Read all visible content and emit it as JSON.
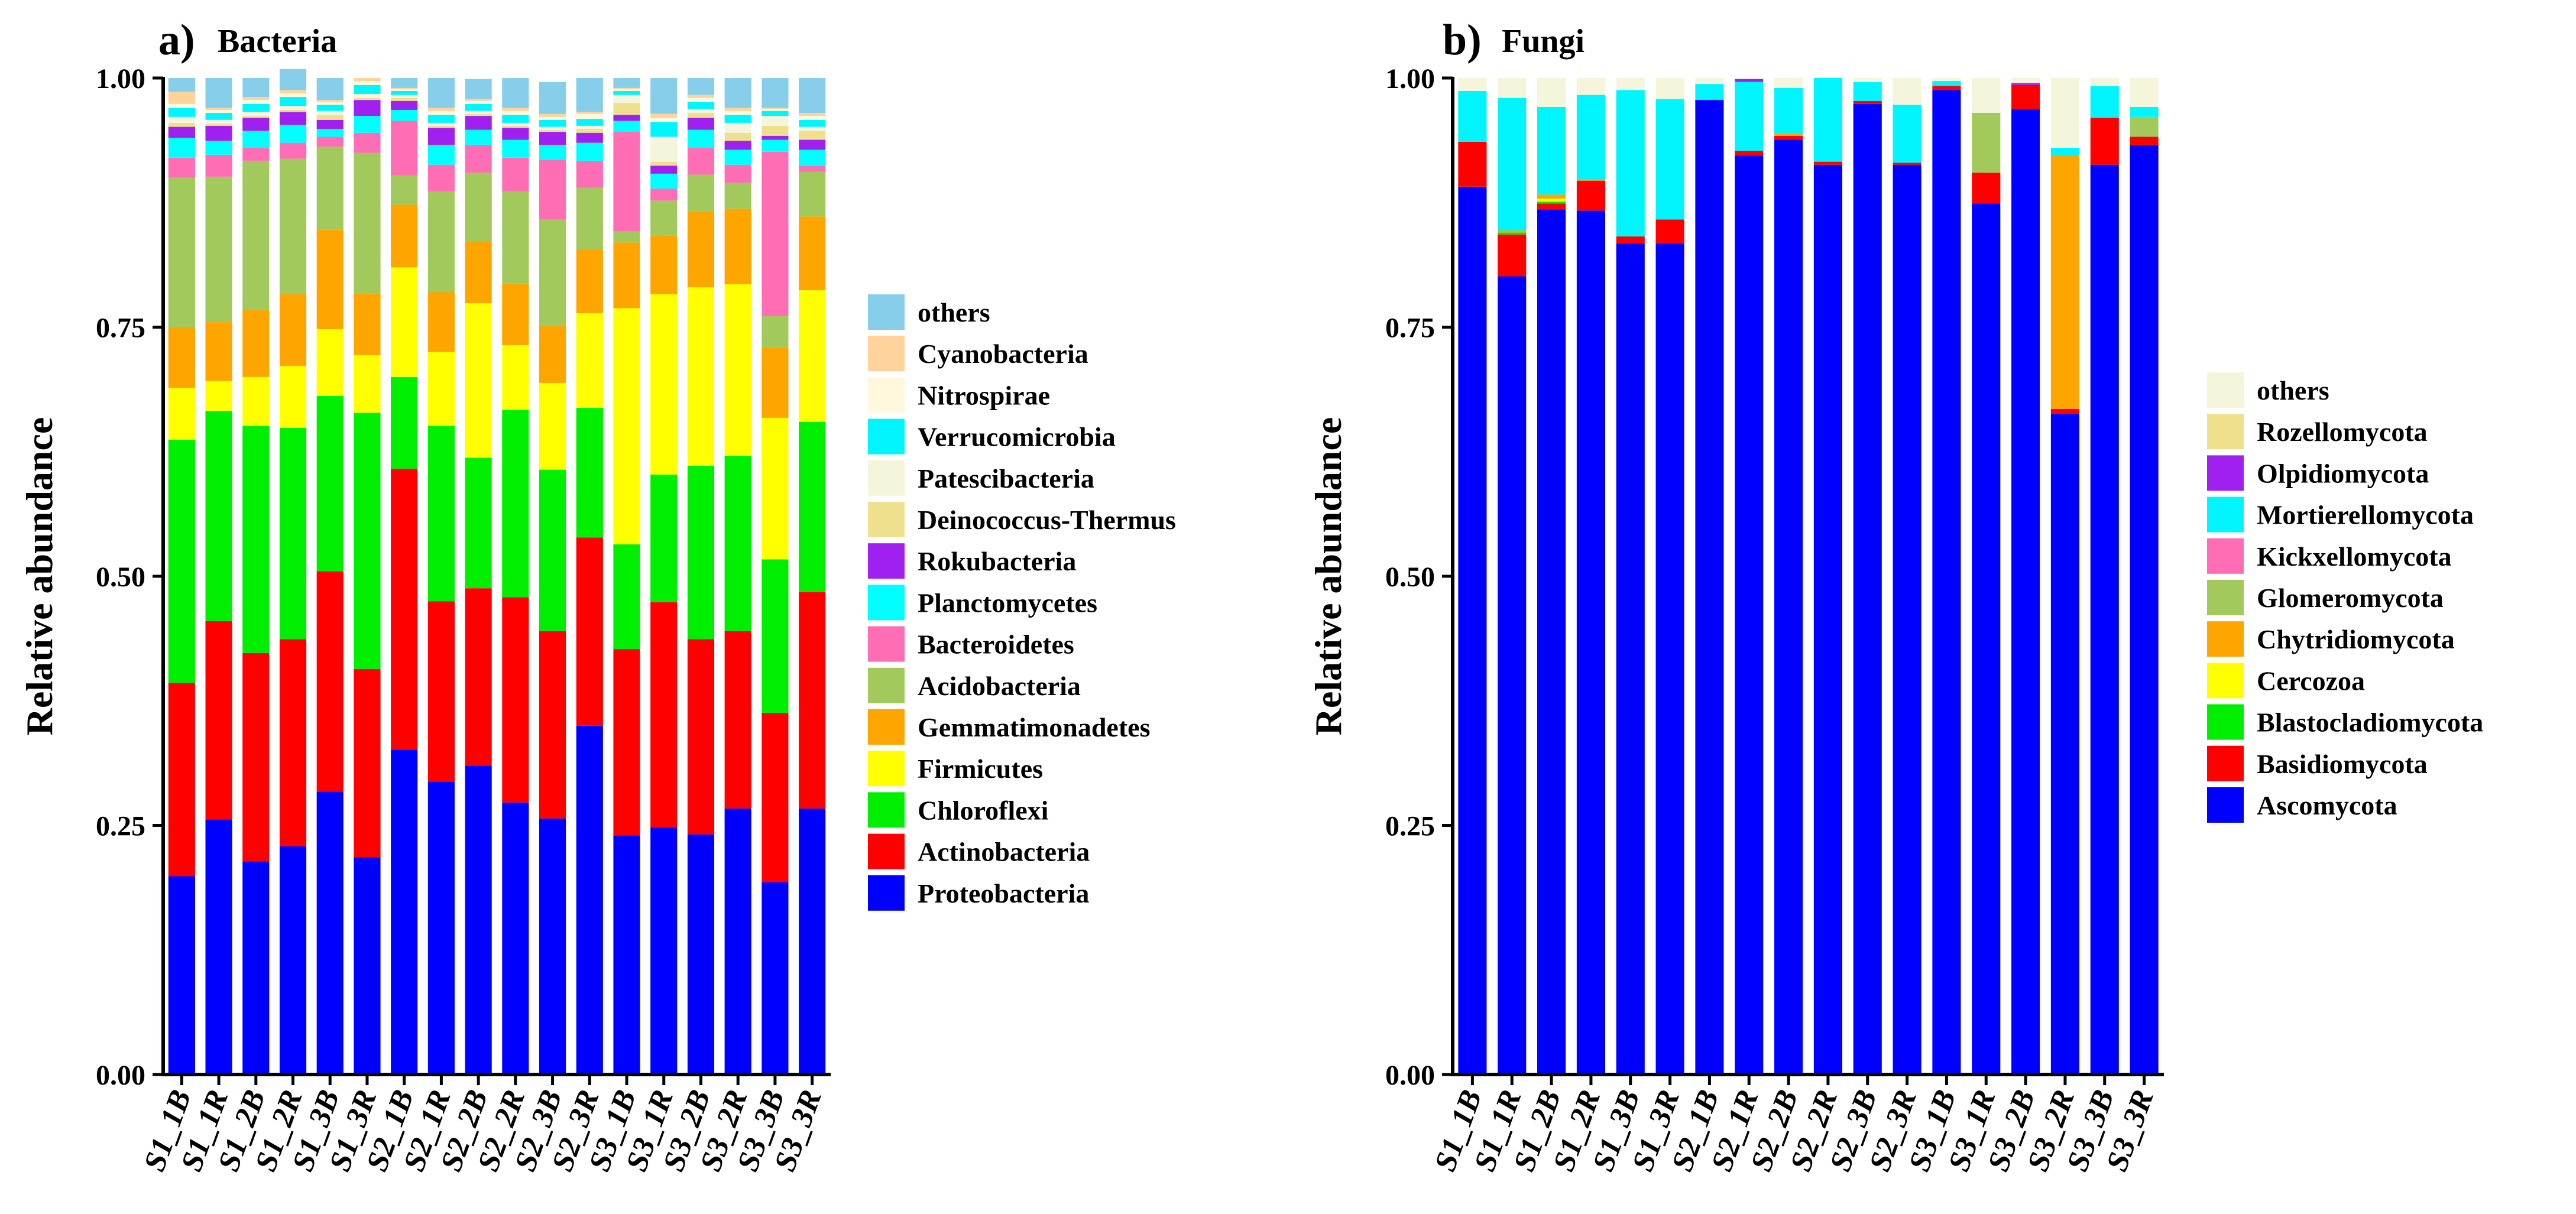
{
  "panels": [
    {
      "id": "a",
      "panel_letter": "a)",
      "panel_title": "Bacteria",
      "ylabel": "Relative abundance",
      "y_ticks": [
        "0.00",
        "0.25",
        "0.50",
        "0.75",
        "1.00"
      ],
      "legend_title": "",
      "chart_data": {
        "type": "bar",
        "stacked": true,
        "title": "Bacteria",
        "xlabel": "",
        "ylabel": "Relative abundance",
        "ylim": [
          0,
          1
        ],
        "categories": [
          "S1_1B",
          "S1_1R",
          "S1_2B",
          "S1_2R",
          "S1_3B",
          "S1_3R",
          "S2_1B",
          "S2_1R",
          "S2_2B",
          "S2_2R",
          "S2_3B",
          "S2_3R",
          "S3_1B",
          "S3_1R",
          "S3_2B",
          "S3_2R",
          "S3_3B",
          "S3_3R"
        ],
        "series": [
          {
            "name": "Proteobacteria",
            "color": "#0000ff",
            "values": [
              0.199,
              0.256,
              0.214,
              0.229,
              0.284,
              0.218,
              0.326,
              0.294,
              0.31,
              0.273,
              0.257,
              0.35,
              0.24,
              0.248,
              0.241,
              0.267,
              0.193,
              0.267
            ]
          },
          {
            "name": "Actinobacteria",
            "color": "#ff0000",
            "values": [
              0.194,
              0.199,
              0.209,
              0.208,
              0.221,
              0.189,
              0.282,
              0.181,
              0.178,
              0.206,
              0.188,
              0.189,
              0.187,
              0.226,
              0.196,
              0.178,
              0.17,
              0.217
            ]
          },
          {
            "name": "Chloroflexi",
            "color": "#00ee00",
            "values": [
              0.244,
              0.211,
              0.228,
              0.212,
              0.176,
              0.257,
              0.092,
              0.176,
              0.131,
              0.188,
              0.162,
              0.13,
              0.105,
              0.128,
              0.174,
              0.176,
              0.154,
              0.171
            ]
          },
          {
            "name": "Firmicutes",
            "color": "#ffff00",
            "values": [
              0.052,
              0.03,
              0.049,
              0.062,
              0.067,
              0.058,
              0.11,
              0.074,
              0.155,
              0.065,
              0.087,
              0.095,
              0.237,
              0.181,
              0.179,
              0.172,
              0.142,
              0.132
            ]
          },
          {
            "name": "Gemmatimonadetes",
            "color": "#ffa500",
            "values": [
              0.061,
              0.059,
              0.067,
              0.072,
              0.1,
              0.062,
              0.063,
              0.06,
              0.062,
              0.062,
              0.057,
              0.064,
              0.066,
              0.059,
              0.076,
              0.076,
              0.071,
              0.074
            ]
          },
          {
            "name": "Acidobacteria",
            "color": "#a1c95c",
            "values": [
              0.15,
              0.146,
              0.15,
              0.136,
              0.083,
              0.141,
              0.029,
              0.101,
              0.069,
              0.092,
              0.107,
              0.062,
              0.011,
              0.035,
              0.037,
              0.026,
              0.031,
              0.045
            ]
          },
          {
            "name": "Bacteroidetes",
            "color": "#ff6eb4",
            "values": [
              0.02,
              0.022,
              0.013,
              0.016,
              0.01,
              0.02,
              0.055,
              0.027,
              0.028,
              0.034,
              0.06,
              0.027,
              0.1,
              0.012,
              0.027,
              0.018,
              0.165,
              0.006
            ]
          },
          {
            "name": "Planctomycetes",
            "color": "#00ffff",
            "values": [
              0.02,
              0.014,
              0.017,
              0.018,
              0.008,
              0.017,
              0.011,
              0.02,
              0.015,
              0.018,
              0.015,
              0.018,
              0.011,
              0.015,
              0.018,
              0.015,
              0.012,
              0.016
            ]
          },
          {
            "name": "Rokubacteria",
            "color": "#a020f0",
            "values": [
              0.011,
              0.015,
              0.013,
              0.013,
              0.009,
              0.016,
              0.009,
              0.017,
              0.014,
              0.012,
              0.013,
              0.01,
              0.006,
              0.008,
              0.012,
              0.009,
              0.004,
              0.01
            ]
          },
          {
            "name": "Deinococcus-Thermus",
            "color": "#eee08d",
            "values": [
              0.004,
              0.002,
              0.002,
              0.002,
              0.005,
              0.002,
              0.003,
              0.002,
              0.002,
              0.002,
              0.002,
              0.004,
              0.012,
              0.004,
              0.005,
              0.008,
              0.01,
              0.009
            ]
          },
          {
            "name": "Patescibacteria",
            "color": "#f5f5dc",
            "values": [
              0.006,
              0.004,
              0.004,
              0.004,
              0.004,
              0.004,
              0.003,
              0.003,
              0.003,
              0.003,
              0.003,
              0.003,
              0.008,
              0.025,
              0.004,
              0.01,
              0.01,
              0.004
            ]
          },
          {
            "name": "Verrucomicrobia",
            "color": "#00f5ff",
            "values": [
              0.009,
              0.007,
              0.008,
              0.009,
              0.006,
              0.009,
              0.004,
              0.008,
              0.007,
              0.008,
              0.007,
              0.007,
              0.004,
              0.015,
              0.007,
              0.008,
              0.005,
              0.007
            ]
          },
          {
            "name": "Nitrospirae",
            "color": "#fff8dc",
            "values": [
              0.004,
              0.003,
              0.004,
              0.004,
              0.003,
              0.004,
              0.002,
              0.004,
              0.003,
              0.004,
              0.003,
              0.005,
              0.002,
              0.004,
              0.004,
              0.004,
              0.002,
              0.004
            ]
          },
          {
            "name": "Cyanobacteria",
            "color": "#ffd39b",
            "values": [
              0.012,
              0.002,
              0.003,
              0.003,
              0.002,
              0.003,
              0.001,
              0.003,
              0.002,
              0.003,
              0.003,
              0.002,
              0.001,
              0.004,
              0.003,
              0.003,
              0.001,
              0.003
            ]
          },
          {
            "name": "others",
            "color": "#87ceeb",
            "values": [
              0.014,
              0.03,
              0.019,
              0.021,
              0.022,
              0.0,
              0.01,
              0.03,
              0.02,
              0.03,
              0.032,
              0.034,
              0.01,
              0.036,
              0.017,
              0.03,
              0.03,
              0.035
            ]
          }
        ]
      }
    },
    {
      "id": "b",
      "panel_letter": "b)",
      "panel_title": "Fungi",
      "ylabel": "Relative abundance",
      "y_ticks": [
        "0.00",
        "0.25",
        "0.50",
        "0.75",
        "1.00"
      ],
      "legend_title": "",
      "chart_data": {
        "type": "bar",
        "stacked": true,
        "title": "Fungi",
        "xlabel": "",
        "ylabel": "Relative abundance",
        "ylim": [
          0,
          1
        ],
        "categories": [
          "S1_1B",
          "S1_1R",
          "S1_2B",
          "S1_2R",
          "S1_3B",
          "S1_3R",
          "S2_1B",
          "S2_1R",
          "S2_2B",
          "S2_2R",
          "S2_3B",
          "S2_3R",
          "S3_1B",
          "S3_1R",
          "S3_2B",
          "S3_2R",
          "S3_3B",
          "S3_3R"
        ],
        "series": [
          {
            "name": "Ascomycota",
            "color": "#0000ff",
            "values": [
              0.891,
              0.801,
              0.868,
              0.867,
              0.834,
              0.834,
              0.978,
              0.922,
              0.938,
              0.913,
              0.974,
              0.913,
              0.988,
              0.874,
              0.969,
              0.663,
              0.913,
              0.933
            ]
          },
          {
            "name": "Basidiomycota",
            "color": "#ff0000",
            "values": [
              0.045,
              0.042,
              0.006,
              0.03,
              0.007,
              0.024,
              0.0,
              0.005,
              0.004,
              0.003,
              0.003,
              0.002,
              0.004,
              0.031,
              0.024,
              0.005,
              0.047,
              0.008
            ]
          },
          {
            "name": "Blastocladiomycota",
            "color": "#00ee00",
            "values": [
              0.0,
              0.002,
              0.002,
              0.0,
              0.0,
              0.0,
              0.0,
              0.0,
              0.0,
              0.0,
              0.0,
              0.0,
              0.0,
              0.0,
              0.0,
              0.0,
              0.0,
              0.0
            ]
          },
          {
            "name": "Cercozoa",
            "color": "#ffff00",
            "values": [
              0.0,
              0.0,
              0.003,
              0.0,
              0.0,
              0.0,
              0.0,
              0.0,
              0.0,
              0.0,
              0.0,
              0.0,
              0.0,
              0.0,
              0.0,
              0.0,
              0.0,
              0.0
            ]
          },
          {
            "name": "Chytridiomycota",
            "color": "#ffa500",
            "values": [
              0.0,
              0.002,
              0.004,
              0.001,
              0.0,
              0.0,
              0.0,
              0.0,
              0.002,
              0.0,
              0.0,
              0.0,
              0.0,
              0.0,
              0.0,
              0.254,
              0.0,
              0.0
            ]
          },
          {
            "name": "Glomeromycota",
            "color": "#a1c95c",
            "values": [
              0.0,
              0.0,
              0.0,
              0.0,
              0.0,
              0.0,
              0.0,
              0.0,
              0.0,
              0.0,
              0.0,
              0.0,
              0.0,
              0.06,
              0.0,
              0.0,
              0.0,
              0.02
            ]
          },
          {
            "name": "Kickxellomycota",
            "color": "#ff6eb4",
            "values": [
              0.0,
              0.0,
              0.0,
              0.0,
              0.0,
              0.0,
              0.0,
              0.0,
              0.0,
              0.0,
              0.0,
              0.0,
              0.0,
              0.0,
              0.0,
              0.0,
              0.0,
              0.0
            ]
          },
          {
            "name": "Mortierellomycota",
            "color": "#00f5ff",
            "values": [
              0.051,
              0.133,
              0.088,
              0.085,
              0.147,
              0.121,
              0.016,
              0.069,
              0.046,
              0.084,
              0.019,
              0.058,
              0.005,
              0.0,
              0.0,
              0.008,
              0.032,
              0.01
            ]
          },
          {
            "name": "Olpidiomycota",
            "color": "#a020f0",
            "values": [
              0.0,
              0.0,
              0.0,
              0.0,
              0.0,
              0.0,
              0.0,
              0.003,
              0.0,
              0.0,
              0.0,
              0.0,
              0.0,
              0.0,
              0.002,
              0.0,
              0.0,
              0.0
            ]
          },
          {
            "name": "Rozellomycota",
            "color": "#eee08d",
            "values": [
              0.0,
              0.0,
              0.0,
              0.0,
              0.0,
              0.0,
              0.0,
              0.0,
              0.0,
              0.0,
              0.0,
              0.0,
              0.0,
              0.0,
              0.0,
              0.0,
              0.0,
              0.0
            ]
          },
          {
            "name": "others",
            "color": "#f5f5dc",
            "values": [
              0.013,
              0.02,
              0.029,
              0.017,
              0.012,
              0.021,
              0.006,
              0.001,
              0.01,
              0.0,
              0.004,
              0.027,
              0.003,
              0.035,
              0.005,
              0.07,
              0.008,
              0.029
            ]
          }
        ]
      }
    }
  ]
}
